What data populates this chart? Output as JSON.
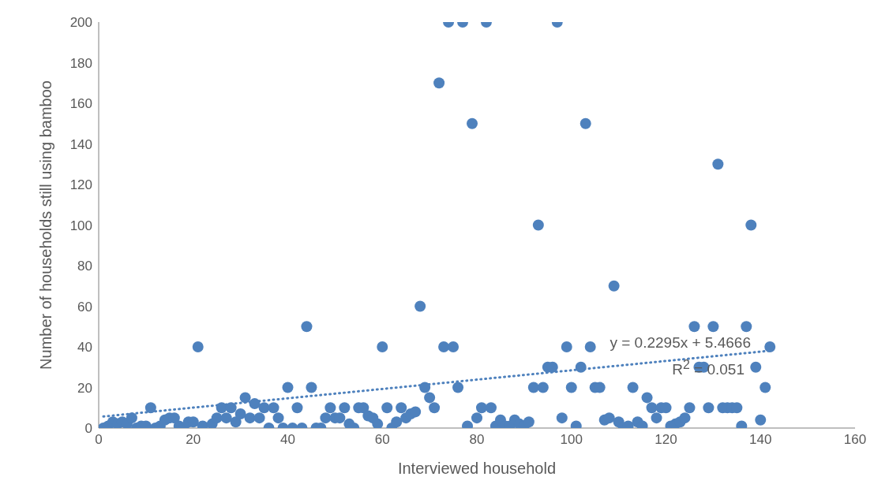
{
  "chart_data": {
    "type": "scatter",
    "xlabel": "Interviewed household",
    "ylabel": "Number of households still using bamboo",
    "xlim": [
      0,
      160
    ],
    "xticks": [
      0,
      20,
      40,
      60,
      80,
      100,
      120,
      140,
      160
    ],
    "ylim": [
      0,
      200
    ],
    "yticks": [
      0,
      20,
      40,
      60,
      80,
      100,
      120,
      140,
      160,
      180,
      200
    ],
    "grid": false,
    "legend": false,
    "marker": "circle",
    "annotations": [
      "y = 0.2295x + 5.4666",
      "R$^{2}$ = 0.051"
    ],
    "series": [
      {
        "color": "#4e81bd",
        "x": [
          1,
          2,
          3,
          4,
          5,
          6,
          7,
          8,
          9,
          10,
          11,
          12,
          13,
          14,
          15,
          16,
          17,
          18,
          19,
          20,
          21,
          22,
          23,
          24,
          25,
          26,
          27,
          28,
          29,
          30,
          31,
          32,
          33,
          34,
          35,
          36,
          37,
          38,
          39,
          40,
          41,
          42,
          43,
          44,
          45,
          46,
          47,
          48,
          49,
          50,
          51,
          52,
          53,
          54,
          55,
          56,
          57,
          58,
          59,
          60,
          61,
          62,
          63,
          64,
          65,
          66,
          67,
          68,
          69,
          70,
          71,
          72,
          73,
          74,
          75,
          76,
          77,
          78,
          79,
          80,
          81,
          82,
          83,
          84,
          85,
          86,
          87,
          88,
          89,
          90,
          91,
          92,
          93,
          94,
          95,
          96,
          97,
          98,
          99,
          100,
          101,
          102,
          103,
          104,
          105,
          106,
          107,
          108,
          109,
          110,
          111,
          112,
          113,
          114,
          115,
          116,
          117,
          118,
          119,
          120,
          121,
          122,
          123,
          124,
          125,
          126,
          127,
          128,
          129,
          130,
          131,
          132,
          133,
          134,
          135,
          136,
          137,
          138,
          139,
          140,
          141,
          142
        ],
        "values": [
          0,
          1,
          3,
          2,
          3,
          2,
          5,
          0,
          1,
          1,
          10,
          0,
          1,
          4,
          5,
          5,
          1,
          0,
          3,
          3,
          40,
          1,
          null,
          2,
          5,
          10,
          5,
          10,
          3,
          7,
          15,
          5,
          12,
          5,
          10,
          0,
          10,
          5,
          0,
          20,
          0,
          10,
          0,
          50,
          20,
          0,
          0,
          5,
          10,
          5,
          5,
          10,
          2,
          0,
          10,
          10,
          6,
          5,
          2,
          40,
          10,
          0,
          3,
          10,
          5,
          7,
          8,
          60,
          20,
          15,
          10,
          170,
          40,
          200,
          40,
          20,
          200,
          1,
          150,
          5,
          10,
          200,
          10,
          1,
          4,
          1,
          1,
          4,
          2,
          1,
          3,
          20,
          100,
          20,
          30,
          30,
          200,
          5,
          40,
          20,
          1,
          30,
          150,
          40,
          20,
          20,
          4,
          5,
          70,
          3,
          0,
          1,
          20,
          3,
          1,
          15,
          10,
          5,
          10,
          10,
          1,
          2,
          3,
          5,
          10,
          50,
          30,
          30,
          10,
          50,
          130,
          10,
          10,
          10,
          10,
          1,
          50,
          100,
          30,
          4,
          20,
          40
        ]
      },
      {
        "type": "line",
        "color": "#4e81bd",
        "line_style": "dotted",
        "marker": "none",
        "x": [
          1,
          142
        ],
        "values": [
          5.7,
          38.1
        ]
      }
    ]
  }
}
